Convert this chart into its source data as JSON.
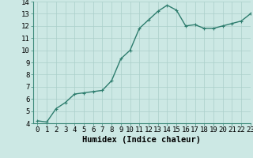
{
  "x": [
    0,
    1,
    2,
    3,
    4,
    5,
    6,
    7,
    8,
    9,
    10,
    11,
    12,
    13,
    14,
    15,
    16,
    17,
    18,
    19,
    20,
    21,
    22,
    23
  ],
  "y": [
    4.2,
    4.1,
    5.2,
    5.7,
    6.4,
    6.5,
    6.6,
    6.7,
    7.5,
    9.3,
    10.0,
    11.8,
    12.5,
    13.2,
    13.7,
    13.3,
    12.0,
    12.1,
    11.8,
    11.8,
    12.0,
    12.2,
    12.4,
    13.0
  ],
  "line_color": "#2e7d6e",
  "marker": "+",
  "marker_size": 3,
  "bg_color": "#cce8e4",
  "grid_color": "#aacfca",
  "xlabel": "Humidex (Indice chaleur)",
  "ylim": [
    4,
    14
  ],
  "xlim": [
    -0.5,
    23
  ],
  "yticks": [
    4,
    5,
    6,
    7,
    8,
    9,
    10,
    11,
    12,
    13,
    14
  ],
  "xticks": [
    0,
    1,
    2,
    3,
    4,
    5,
    6,
    7,
    8,
    9,
    10,
    11,
    12,
    13,
    14,
    15,
    16,
    17,
    18,
    19,
    20,
    21,
    22,
    23
  ],
  "tick_label_fontsize": 6.5,
  "xlabel_fontsize": 7.5,
  "line_width": 1.0,
  "spine_color": "#3d8a7a"
}
